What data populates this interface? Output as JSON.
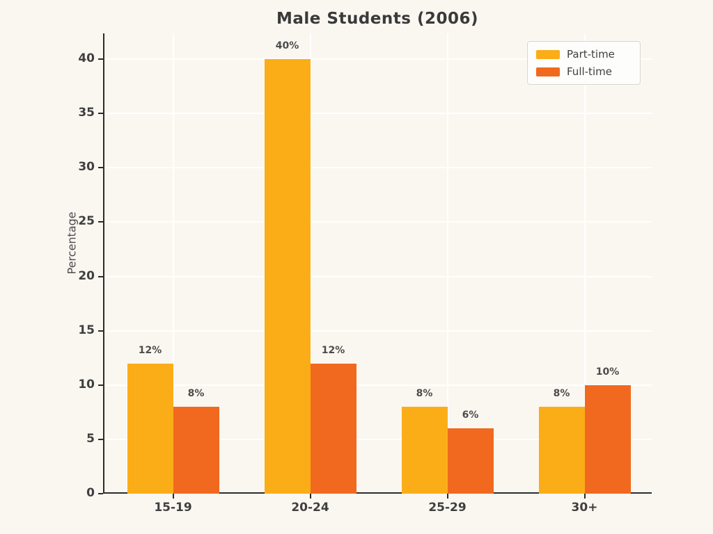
{
  "page": {
    "background_color": "#FAF7F1"
  },
  "chart_data": {
    "type": "bar",
    "title": "Male Students (2006)",
    "ylabel": "Percentage",
    "xlabel": "",
    "categories": [
      "15-19",
      "20-24",
      "25-29",
      "30+"
    ],
    "series": [
      {
        "name": "Part-time",
        "color": "#FBAD18",
        "values": [
          12,
          40,
          8,
          8
        ],
        "bar_labels": [
          "12%",
          "40%",
          "8%",
          "8%"
        ]
      },
      {
        "name": "Full-time",
        "color": "#F1691E",
        "values": [
          8,
          12,
          6,
          10
        ],
        "bar_labels": [
          "8%",
          "12%",
          "6%",
          "10%"
        ]
      }
    ],
    "ylim": [
      0,
      42
    ],
    "yticks": [
      0,
      5,
      10,
      15,
      20,
      25,
      30,
      35,
      40
    ],
    "grid": true,
    "legend_position": "top-right",
    "axis_color": "#2B2B2B",
    "text_color": "#3F3F3F"
  }
}
